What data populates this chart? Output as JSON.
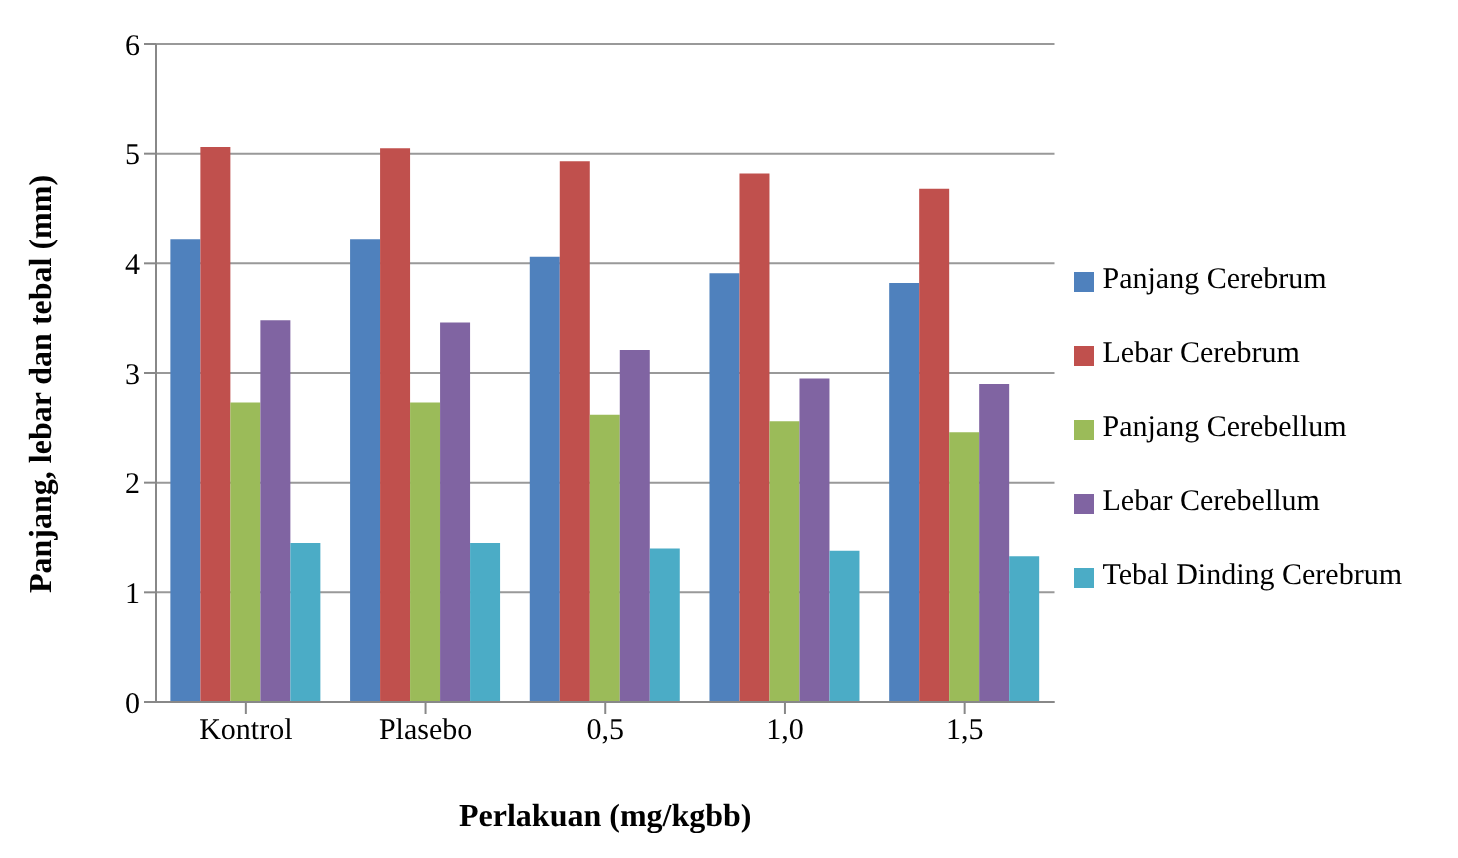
{
  "chart_data": {
    "type": "bar",
    "xlabel": "Perlakuan (mg/kgbb)",
    "ylabel": "Panjang, lebar dan tebal (mm)",
    "categories": [
      "Kontrol",
      "Plasebo",
      "0,5",
      "1,0",
      "1,5"
    ],
    "series": [
      {
        "name": "Panjang Cerebrum",
        "color": "#4f81bd",
        "values": [
          4.22,
          4.22,
          4.06,
          3.91,
          3.82
        ]
      },
      {
        "name": "Lebar Cerebrum",
        "color": "#c0504d",
        "values": [
          5.06,
          5.05,
          4.93,
          4.82,
          4.68
        ]
      },
      {
        "name": "Panjang Cerebellum",
        "color": "#9bbb59",
        "values": [
          2.73,
          2.73,
          2.62,
          2.56,
          2.46
        ]
      },
      {
        "name": "Lebar Cerebellum",
        "color": "#8064a2",
        "values": [
          3.48,
          3.46,
          3.21,
          2.95,
          2.9
        ]
      },
      {
        "name": "Tebal Dinding Cerebrum",
        "color": "#4bacc6",
        "values": [
          1.45,
          1.45,
          1.4,
          1.38,
          1.33
        ]
      }
    ],
    "ylim": [
      0,
      6
    ],
    "yticks": [
      0,
      1,
      2,
      3,
      4,
      5,
      6
    ],
    "grid": "y",
    "legend": "right"
  }
}
